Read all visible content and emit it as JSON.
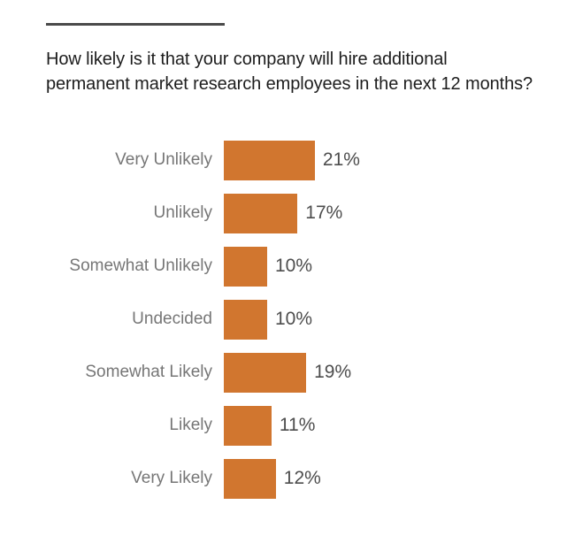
{
  "page": {
    "background_color": "#ffffff"
  },
  "header": {
    "rule_color": "#4a4a4a",
    "title_lines": [
      "How likely is it that your company will hire additional",
      "permanent market research employees in the next 12 months?"
    ]
  },
  "chart_data": {
    "type": "bar",
    "orientation": "horizontal",
    "title": "How likely is it that your company will hire additional permanent market research employees in the next 12 months?",
    "categories": [
      "Very Unlikely",
      "Unlikely",
      "Somewhat Unlikely",
      "Undecided",
      "Somewhat Likely",
      "Likely",
      "Very Likely"
    ],
    "values": [
      21,
      17,
      10,
      10,
      19,
      11,
      12
    ],
    "value_suffix": "%",
    "value_labels_position": "right",
    "bar_color": "#d1762f",
    "category_label_color": "#767676",
    "value_label_color": "#4d4d4d",
    "grid": false,
    "axis_visible": false,
    "xlim": [
      0,
      100
    ]
  }
}
